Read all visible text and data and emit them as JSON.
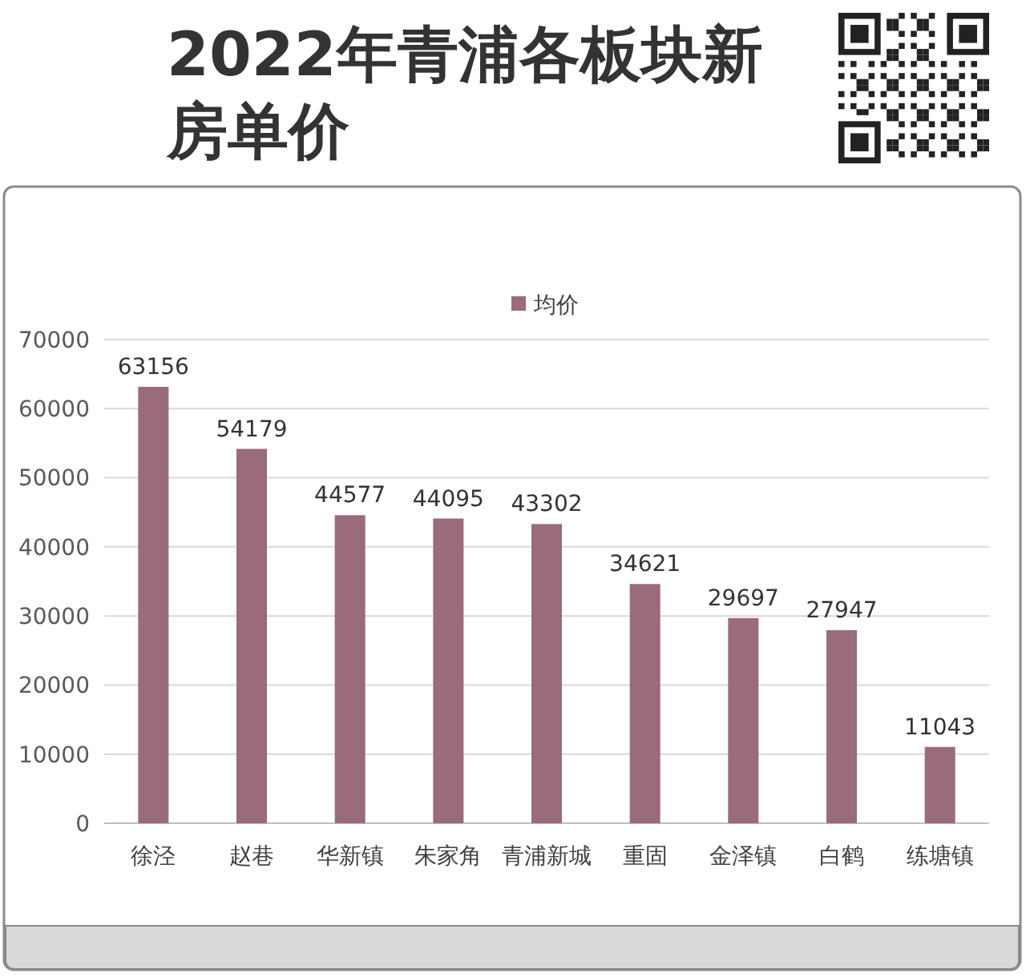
{
  "chart_data": {
    "type": "bar",
    "title": "2022年青浦各板块新房单价",
    "categories": [
      "徐泾",
      "赵巷",
      "华新镇",
      "朱家角",
      "青浦新城",
      "重固",
      "金泽镇",
      "白鹤",
      "练塘镇"
    ],
    "series": [
      {
        "name": "均价",
        "color": "#9a6b79",
        "values": [
          63156,
          54179,
          44577,
          44095,
          43302,
          34621,
          29697,
          27947,
          11043
        ]
      }
    ],
    "ylim": [
      0,
      70000
    ],
    "yticks": [
      0,
      10000,
      20000,
      30000,
      40000,
      50000,
      60000,
      70000
    ],
    "grid": "y",
    "legend": "top",
    "data_labels": true
  }
}
